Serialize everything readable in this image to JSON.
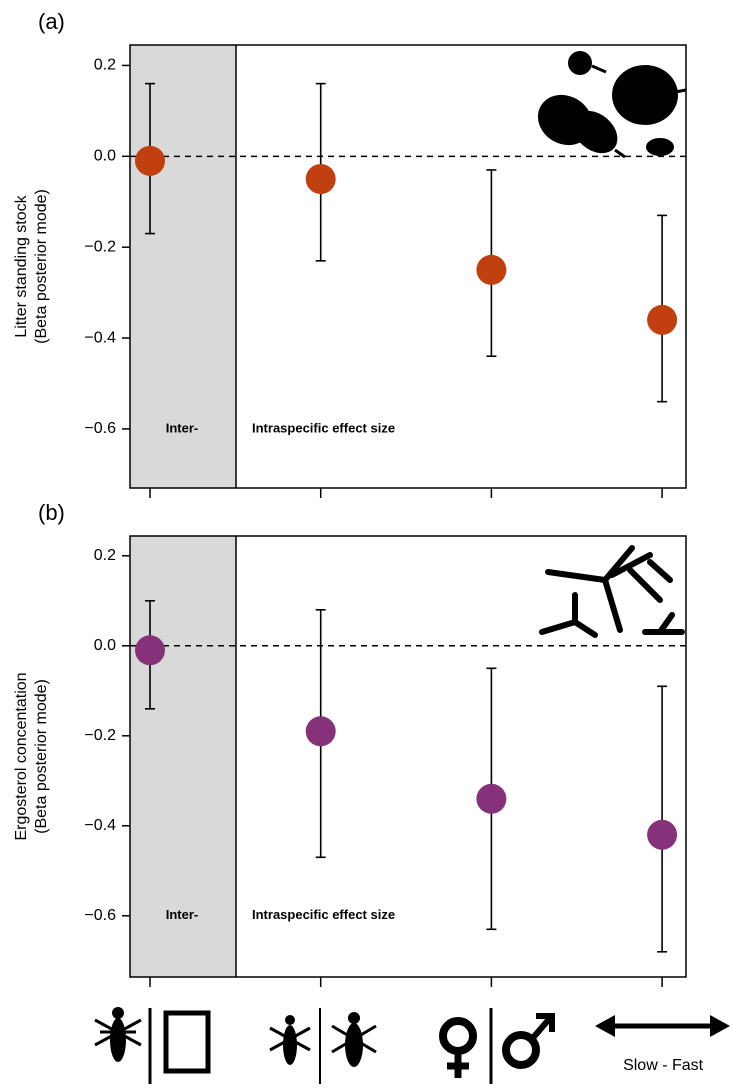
{
  "chart_data": [
    {
      "type": "errorbar",
      "panel_label": "(a)",
      "ylabel": [
        "Litter standing stock",
        "(Beta posterior mode)"
      ],
      "categories": [
        null,
        null,
        null,
        null
      ],
      "values": [
        -0.01,
        -0.05,
        -0.25,
        -0.36
      ],
      "low": [
        -0.17,
        -0.23,
        -0.44,
        -0.54
      ],
      "high": [
        0.16,
        0.16,
        -0.03,
        -0.13
      ],
      "color": "#c0400f",
      "ylim": [
        -0.73,
        0.245
      ],
      "yticks": [
        0.2,
        {
          "value": 0,
          "label": "0.0"
        },
        {
          "value": -0.2,
          "label": "−0.2"
        },
        {
          "value": -0.4,
          "label": "−0.4"
        },
        {
          "value": -0.6,
          "label": "−0.6"
        }
      ],
      "reference_line": 0,
      "annotations": [
        "Inter-",
        "Intraspecific effect size"
      ]
    },
    {
      "type": "errorbar",
      "panel_label": "(b)",
      "ylabel": [
        "Ergosterol concentation",
        "(Beta posterior mode)"
      ],
      "categories": [
        null,
        null,
        null,
        "Slow - Fast"
      ],
      "values": [
        -0.01,
        -0.19,
        -0.34,
        -0.42
      ],
      "low": [
        -0.14,
        -0.47,
        -0.63,
        -0.68
      ],
      "high": [
        0.1,
        0.08,
        -0.05,
        -0.09
      ],
      "color": "#85327a",
      "ylim": [
        -0.736,
        0.244
      ],
      "yticks": [
        0.2,
        {
          "value": 0,
          "label": "0.0"
        },
        {
          "value": -0.2,
          "label": "−0.2"
        },
        {
          "value": -0.4,
          "label": "−0.4"
        },
        {
          "value": -0.6,
          "label": "−0.6"
        }
      ],
      "reference_line": 0,
      "annotations": [
        "Inter-",
        "Intraspecific effect size"
      ]
    }
  ]
}
